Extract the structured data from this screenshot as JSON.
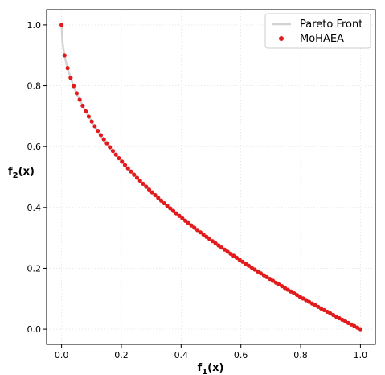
{
  "chart_data": {
    "type": "scatter",
    "title": "",
    "xlabel": "f",
    "xlabel_sub": "1",
    "xlabel_suffix": "(x)",
    "ylabel": "f",
    "ylabel_sub": "2",
    "ylabel_suffix": "(x)",
    "xlim": [
      -0.05,
      1.05
    ],
    "ylim": [
      -0.05,
      1.05
    ],
    "x_ticks": [
      0.0,
      0.2,
      0.4,
      0.6,
      0.8,
      1.0
    ],
    "x_tick_labels": [
      "0.0",
      "0.2",
      "0.4",
      "0.6",
      "0.8",
      "1.0"
    ],
    "y_ticks": [
      0.0,
      0.2,
      0.4,
      0.6,
      0.8,
      1.0
    ],
    "y_tick_labels": [
      "0.0",
      "0.2",
      "0.4",
      "0.6",
      "0.8",
      "1.0"
    ],
    "grid": true,
    "legend_position": "top-right",
    "series": [
      {
        "name": "Pareto Front",
        "kind": "line",
        "color": "#d3d3d3",
        "function": "1 - sqrt(x)",
        "x_range": [
          0,
          1
        ]
      },
      {
        "name": "MoHAEA",
        "kind": "scatter",
        "color": "#e31a1c",
        "count": 100,
        "function": "1 - sqrt(x)",
        "x_range": [
          0,
          1
        ]
      }
    ]
  }
}
